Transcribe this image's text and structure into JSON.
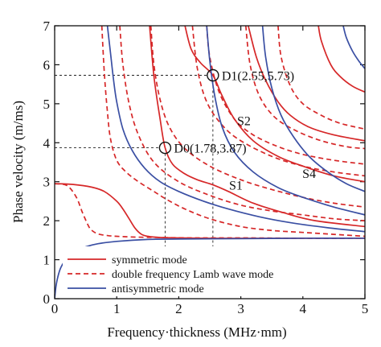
{
  "chart_data": {
    "type": "line",
    "xlabel": "Frequency·thickness (MHz·mm)",
    "ylabel": "Phase velocity (m/ms)",
    "xlim": [
      0,
      5
    ],
    "ylim": [
      0,
      7
    ],
    "xticks": [
      "0",
      "1",
      "2",
      "3",
      "4",
      "5"
    ],
    "yticks": [
      "0",
      "1",
      "2",
      "3",
      "4",
      "5",
      "6",
      "7"
    ],
    "grid": false,
    "legend": {
      "placement": "bottom-left",
      "entries": [
        {
          "label": "symmetric mode",
          "color": "#d62728",
          "style": "solid"
        },
        {
          "label": "double frequency Lamb wave mode",
          "color": "#d62728",
          "style": "dashed"
        },
        {
          "label": "antisymmetric mode",
          "color": "#3a4fa3",
          "style": "solid"
        }
      ]
    },
    "colors": {
      "symmetric": "#d62728",
      "antisymmetric": "#3a4fa3"
    },
    "series": [
      {
        "group": "symmetric",
        "style": "solid",
        "x": [
          0.0,
          0.3,
          0.6,
          0.8,
          1.0,
          1.1,
          1.2,
          1.3,
          1.4,
          1.5,
          1.7,
          2.0,
          2.5,
          3.0,
          4.0,
          5.0
        ],
        "y": [
          2.95,
          2.93,
          2.86,
          2.75,
          2.5,
          2.3,
          2.05,
          1.8,
          1.65,
          1.6,
          1.57,
          1.56,
          1.55,
          1.55,
          1.55,
          1.55
        ]
      },
      {
        "group": "symmetric",
        "style": "solid",
        "x": [
          1.53,
          1.6,
          1.7,
          1.78,
          1.9,
          2.1,
          2.3,
          2.55,
          2.8,
          3.2,
          3.7,
          4.2,
          5.0
        ],
        "y": [
          7.0,
          5.7,
          4.6,
          3.87,
          3.45,
          3.2,
          3.05,
          2.92,
          2.75,
          2.45,
          2.2,
          2.0,
          1.85
        ]
      },
      {
        "group": "symmetric",
        "style": "solid",
        "x": [
          2.1,
          2.2,
          2.35,
          2.55,
          2.7,
          2.9,
          3.2,
          3.6,
          4.0,
          4.5,
          5.0
        ],
        "y": [
          7.0,
          6.4,
          6.05,
          5.73,
          5.2,
          4.6,
          4.05,
          3.65,
          3.4,
          3.15,
          3.0
        ]
      },
      {
        "group": "symmetric",
        "style": "solid",
        "x": [
          3.12,
          3.25,
          3.4,
          3.6,
          3.8,
          4.1,
          4.5,
          5.0
        ],
        "y": [
          7.0,
          6.2,
          5.6,
          5.05,
          4.7,
          4.4,
          4.2,
          4.05
        ]
      },
      {
        "group": "symmetric",
        "style": "solid",
        "x": [
          4.25,
          4.3,
          4.45,
          4.6,
          4.8,
          5.0
        ],
        "y": [
          7.0,
          6.6,
          6.0,
          5.7,
          5.45,
          5.3
        ]
      },
      {
        "group": "double",
        "style": "dashed",
        "x": [
          0.0,
          0.2,
          0.35,
          0.45,
          0.55,
          0.6,
          0.7,
          0.85,
          1.0,
          1.3,
          1.7,
          2.2,
          3.0,
          4.0,
          5.0
        ],
        "y": [
          2.95,
          2.9,
          2.6,
          2.2,
          1.85,
          1.75,
          1.66,
          1.62,
          1.6,
          1.58,
          1.57,
          1.56,
          1.56,
          1.55,
          1.55
        ]
      },
      {
        "group": "double",
        "style": "dashed",
        "x": [
          0.76,
          0.8,
          0.85,
          0.9,
          1.0,
          1.15,
          1.35,
          1.6,
          1.8,
          2.1,
          2.5,
          3.0,
          3.5,
          4.0,
          4.5,
          5.0
        ],
        "y": [
          7.0,
          5.8,
          4.8,
          4.1,
          3.55,
          3.25,
          3.0,
          2.75,
          2.55,
          2.3,
          2.05,
          1.85,
          1.75,
          1.7,
          1.65,
          1.6
        ]
      },
      {
        "group": "double",
        "style": "dashed",
        "x": [
          1.05,
          1.1,
          1.2,
          1.35,
          1.6,
          2.0,
          2.5,
          3.0,
          3.5,
          4.0,
          4.5,
          5.0
        ],
        "y": [
          7.0,
          6.0,
          5.0,
          4.2,
          3.5,
          3.0,
          2.65,
          2.4,
          2.25,
          2.15,
          2.05,
          2.0
        ]
      },
      {
        "group": "double",
        "style": "dashed",
        "x": [
          1.55,
          1.6,
          1.7,
          1.85,
          2.1,
          2.5,
          3.0,
          3.5,
          4.0,
          4.5,
          5.0
        ],
        "y": [
          7.0,
          6.0,
          5.1,
          4.4,
          3.85,
          3.4,
          3.05,
          2.8,
          2.6,
          2.45,
          2.35
        ]
      },
      {
        "group": "double",
        "style": "dashed",
        "x": [
          2.22,
          2.3,
          2.45,
          2.7,
          3.0,
          3.5,
          4.0,
          4.5,
          5.0
        ],
        "y": [
          7.0,
          5.9,
          5.05,
          4.45,
          4.05,
          3.65,
          3.4,
          3.25,
          3.15
        ]
      },
      {
        "group": "double",
        "style": "dashed",
        "x": [
          2.45,
          2.5,
          2.65,
          2.9,
          3.2,
          3.6,
          4.0,
          4.5,
          5.0
        ],
        "y": [
          7.0,
          6.2,
          5.3,
          4.6,
          4.2,
          3.9,
          3.7,
          3.55,
          3.45
        ]
      },
      {
        "group": "double",
        "style": "dashed",
        "x": [
          3.08,
          3.15,
          3.3,
          3.55,
          3.9,
          4.3,
          4.7,
          5.0
        ],
        "y": [
          7.0,
          6.0,
          5.2,
          4.65,
          4.3,
          4.05,
          3.9,
          3.85
        ]
      },
      {
        "group": "double",
        "style": "dashed",
        "x": [
          3.6,
          3.65,
          3.8,
          4.0,
          4.3,
          4.6,
          5.0
        ],
        "y": [
          7.0,
          6.2,
          5.45,
          5.0,
          4.7,
          4.5,
          4.35
        ]
      },
      {
        "group": "antisymmetric",
        "style": "solid",
        "x": [
          0.0,
          0.02,
          0.05,
          0.1,
          0.2,
          0.3,
          0.5,
          0.7,
          1.0,
          1.5,
          2.0,
          3.0,
          4.0,
          5.0
        ],
        "y": [
          0.0,
          0.3,
          0.55,
          0.8,
          1.05,
          1.2,
          1.33,
          1.41,
          1.47,
          1.52,
          1.53,
          1.54,
          1.55,
          1.55
        ]
      },
      {
        "group": "antisymmetric",
        "style": "solid",
        "x": [
          0.85,
          0.9,
          0.95,
          1.0,
          1.1,
          1.25,
          1.45,
          1.7,
          2.0,
          2.4,
          2.8,
          3.3,
          3.8,
          4.4,
          5.0
        ],
        "y": [
          7.0,
          6.3,
          5.6,
          5.05,
          4.35,
          3.8,
          3.35,
          3.0,
          2.75,
          2.5,
          2.3,
          2.1,
          1.95,
          1.82,
          1.72
        ]
      },
      {
        "group": "antisymmetric",
        "style": "solid",
        "x": [
          2.45,
          2.5,
          2.58,
          2.7,
          2.9,
          3.2,
          3.6,
          4.0,
          4.5,
          5.0
        ],
        "y": [
          7.0,
          6.1,
          5.2,
          4.4,
          3.75,
          3.25,
          2.85,
          2.6,
          2.35,
          2.15
        ]
      },
      {
        "group": "antisymmetric",
        "style": "solid",
        "x": [
          3.35,
          3.4,
          3.5,
          3.65,
          3.85,
          4.1,
          4.4,
          4.7,
          5.0
        ],
        "y": [
          7.0,
          6.2,
          5.4,
          4.7,
          4.15,
          3.65,
          3.25,
          2.95,
          2.75
        ]
      },
      {
        "group": "antisymmetric",
        "style": "solid",
        "x": [
          4.65,
          4.7,
          4.8,
          4.9,
          5.0
        ],
        "y": [
          7.0,
          6.7,
          6.35,
          6.1,
          5.9
        ]
      }
    ],
    "markers": [
      {
        "label": "D0(1.78,3.87)",
        "x": 1.78,
        "y": 3.87
      },
      {
        "label": "D1(2.55,5.73)",
        "x": 2.55,
        "y": 5.73
      }
    ],
    "annotations": [
      {
        "text": "S1",
        "x": 2.92,
        "y": 2.8
      },
      {
        "text": "S2",
        "x": 3.05,
        "y": 4.45
      },
      {
        "text": "S4",
        "x": 4.1,
        "y": 3.1
      }
    ]
  }
}
